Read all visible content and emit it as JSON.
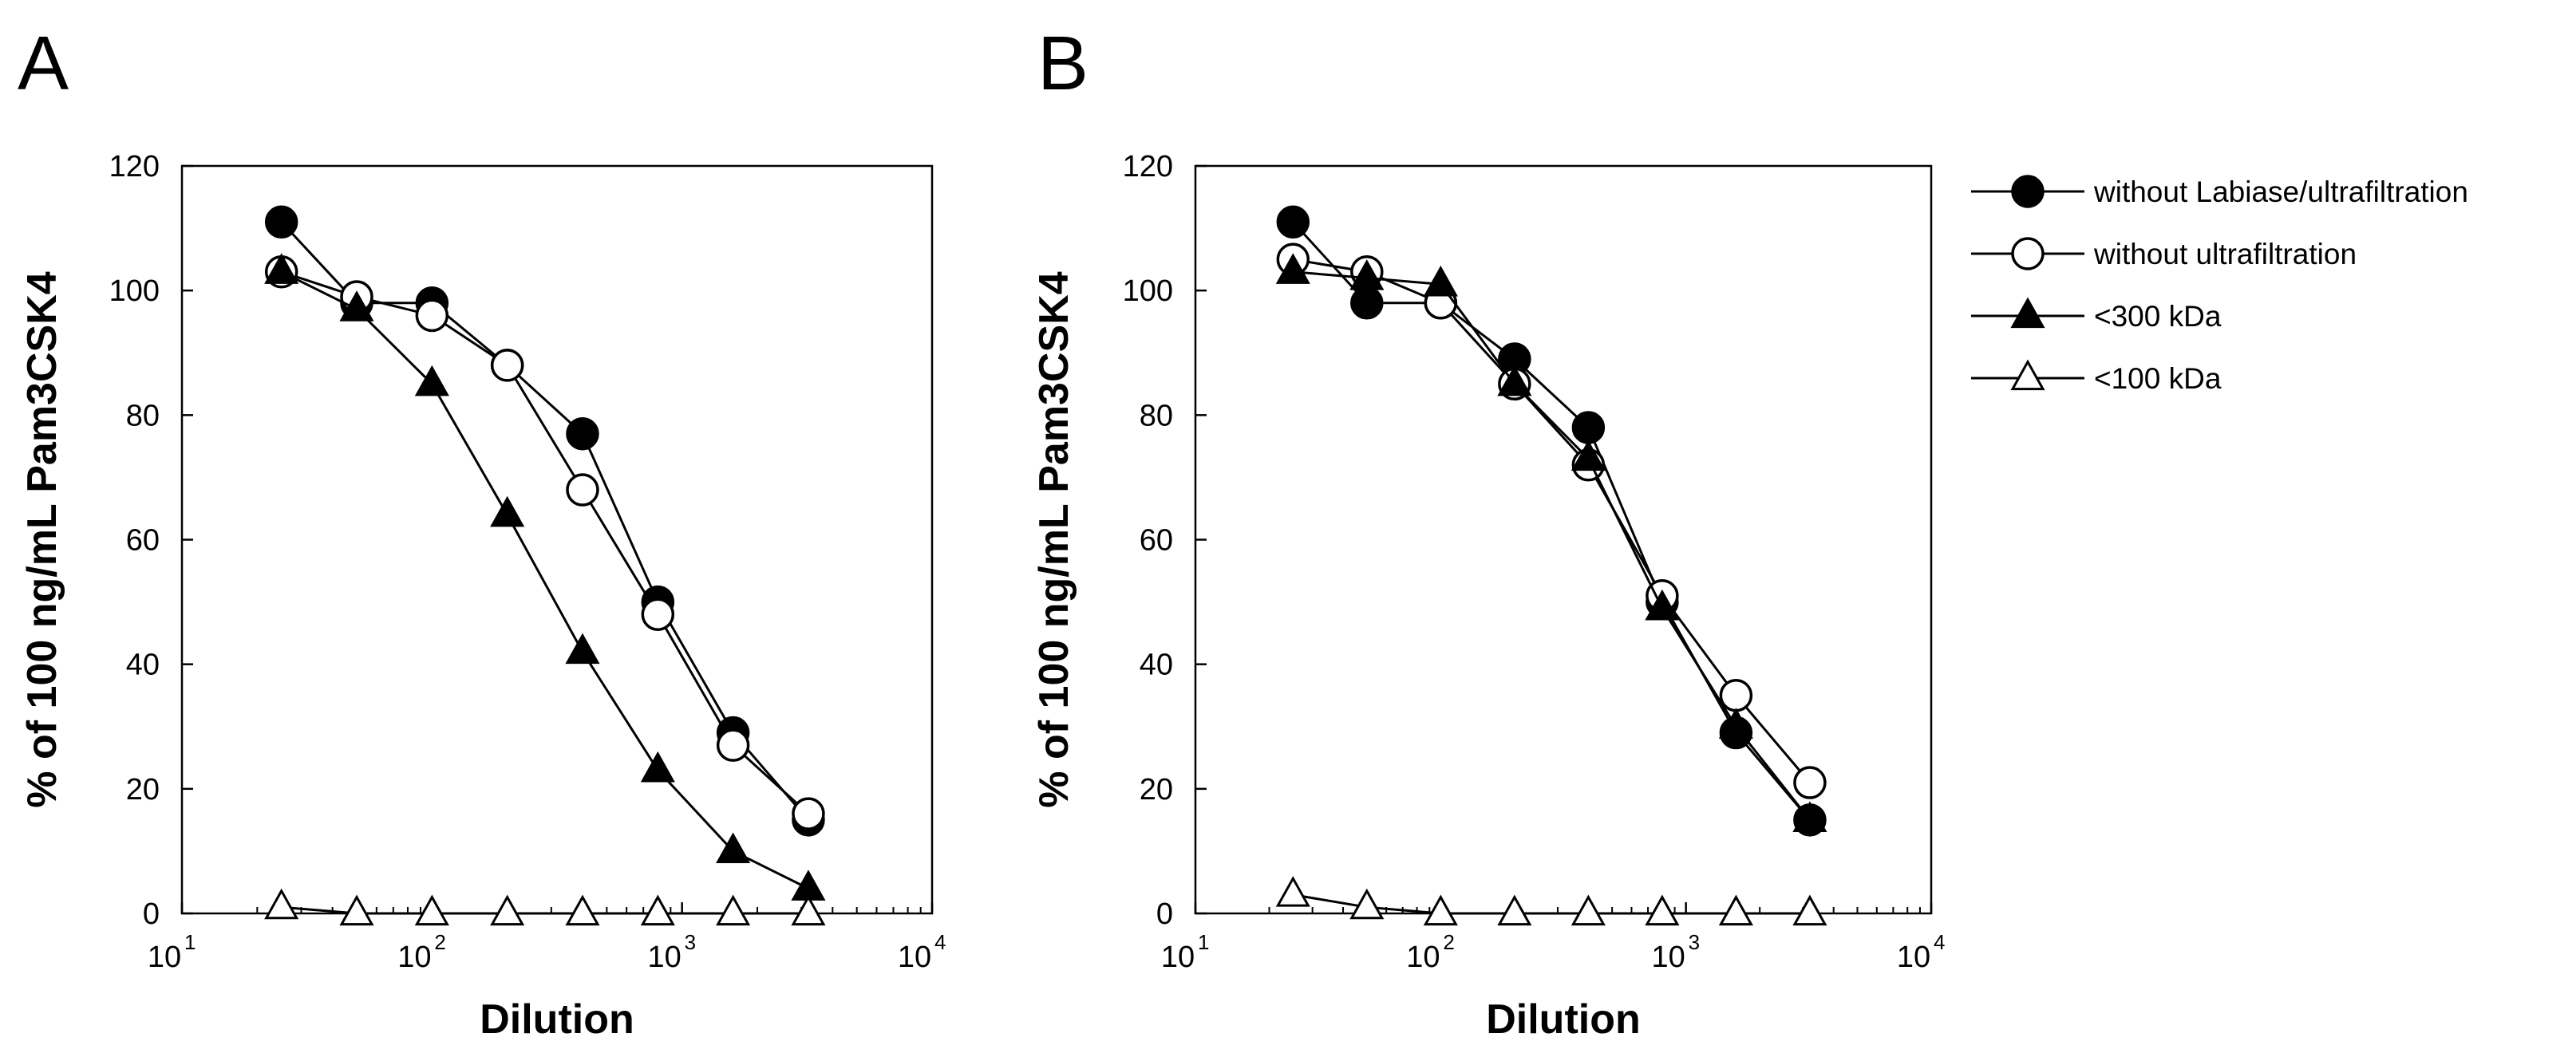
{
  "figure": {
    "panels": [
      "A",
      "B"
    ]
  },
  "legend": {
    "entries": [
      {
        "label": "without Labiase/ultrafiltration",
        "marker": "filled-circle"
      },
      {
        "label": "without ultrafiltration",
        "marker": "open-circle"
      },
      {
        "label": "<300 kDa",
        "marker": "filled-triangle"
      },
      {
        "label": "<100 kDa",
        "marker": "open-triangle"
      }
    ]
  },
  "chart_data": [
    {
      "type": "line",
      "panel": "A",
      "xlabel": "Dilution",
      "ylabel": "% of 100 ng/mL Pam3CSK4",
      "xscale": "log",
      "xlim": [
        10,
        10000
      ],
      "ylim": [
        0,
        120
      ],
      "yticks": [
        0,
        20,
        40,
        60,
        80,
        100,
        120
      ],
      "xticks": [
        {
          "base": "10",
          "exp": "1"
        },
        {
          "base": "10",
          "exp": "2"
        },
        {
          "base": "10",
          "exp": "3"
        },
        {
          "base": "10",
          "exp": "4"
        }
      ],
      "grid": false,
      "x": [
        25,
        50,
        100,
        200,
        400,
        800,
        1600,
        3200
      ],
      "series": [
        {
          "name": "without Labiase/ultrafiltration",
          "marker": "filled-circle",
          "values": [
            111,
            98,
            98,
            88,
            77,
            50,
            29,
            15
          ]
        },
        {
          "name": "without ultrafiltration",
          "marker": "open-circle",
          "values": [
            103,
            99,
            96,
            88,
            68,
            48,
            27,
            16
          ]
        },
        {
          "name": "<300 kDa",
          "marker": "filled-triangle",
          "values": [
            103,
            97,
            85,
            64,
            42,
            23,
            10,
            4
          ]
        },
        {
          "name": "<100 kDa",
          "marker": "open-triangle",
          "values": [
            1,
            0,
            0,
            0,
            0,
            0,
            0,
            0
          ]
        }
      ]
    },
    {
      "type": "line",
      "panel": "B",
      "xlabel": "Dilution",
      "ylabel": "% of 100 ng/mL Pam3CSK4",
      "xscale": "log",
      "xlim": [
        10,
        10000
      ],
      "ylim": [
        0,
        120
      ],
      "yticks": [
        0,
        20,
        40,
        60,
        80,
        100,
        120
      ],
      "xticks": [
        {
          "base": "10",
          "exp": "1"
        },
        {
          "base": "10",
          "exp": "2"
        },
        {
          "base": "10",
          "exp": "3"
        },
        {
          "base": "10",
          "exp": "4"
        }
      ],
      "grid": false,
      "x": [
        25,
        50,
        100,
        200,
        400,
        800,
        1600,
        3200
      ],
      "series": [
        {
          "name": "without Labiase/ultrafiltration",
          "marker": "filled-circle",
          "values": [
            111,
            98,
            98,
            89,
            78,
            50,
            29,
            15
          ]
        },
        {
          "name": "without ultrafiltration",
          "marker": "open-circle",
          "values": [
            105,
            103,
            98,
            85,
            72,
            51,
            35,
            21
          ]
        },
        {
          "name": "<300 kDa",
          "marker": "filled-triangle",
          "values": [
            103,
            102,
            101,
            85,
            73,
            49,
            30,
            15
          ]
        },
        {
          "name": "<100 kDa",
          "marker": "open-triangle",
          "values": [
            3,
            1,
            0,
            0,
            0,
            0,
            0,
            0
          ]
        }
      ]
    }
  ]
}
